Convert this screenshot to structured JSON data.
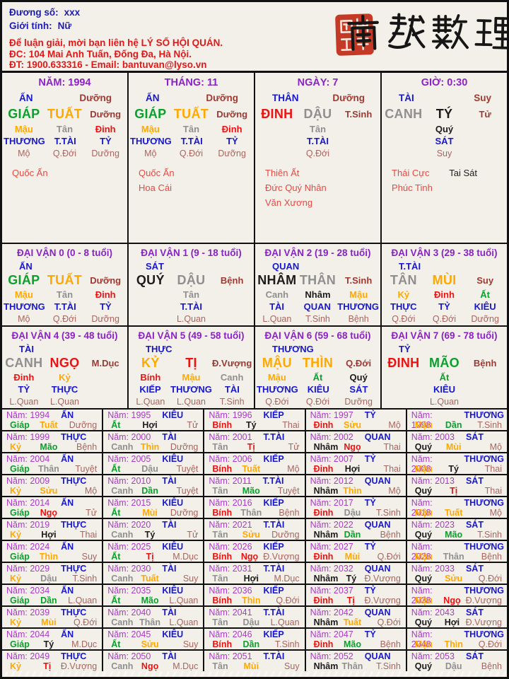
{
  "palette": {
    "bg": "#F3F0EA",
    "navy": "#1C1CB2",
    "blue": "#1717CE",
    "purple": "#8A22C4",
    "magenta": "#A93BC6",
    "green": "#0AA02C",
    "orange": "#FFA800",
    "red": "#EE1111",
    "red2": "#E01818",
    "gray": "#8F8F8F",
    "black": "#1B1B1B",
    "maroon": "#9C3A32",
    "muted": "#A8655F",
    "star": "#E24B44",
    "seal_red": "#C53A26"
  },
  "header": {
    "fields": [
      {
        "label": "Đương số:",
        "value": "xxx"
      },
      {
        "label": "Giới tính:",
        "value": "Nữ"
      }
    ],
    "contact_lines": [
      "Để luận giải, mời bạn liên hệ LÝ SỐ HỘI QUÁN.",
      "ĐC: 104 Mai Anh Tuấn, Đống Đa, Hà Nội.",
      "ĐT: 1900.633316 - Email: bantuvan@lyso.vn"
    ],
    "logo_text": "南越數理"
  },
  "pillars": [
    {
      "name": "pillar-year",
      "title": "NĂM: 1994",
      "god": [
        "ẤN",
        "blue"
      ],
      "state_top": [
        "Dưỡng",
        "maroon"
      ],
      "stem": [
        "GIÁP",
        "green"
      ],
      "branch": [
        "TUẤT",
        "orange"
      ],
      "state": [
        "Dưỡng",
        "maroon"
      ],
      "hidden": [
        {
          "stem": [
            "Mậu",
            "orange"
          ],
          "god": [
            "THƯƠNG",
            "blue"
          ],
          "stage": [
            "Mộ",
            "muted"
          ]
        },
        {
          "stem": [
            "Tân",
            "gray"
          ],
          "god": [
            "T.TÀI",
            "blue"
          ],
          "stage": [
            "Q.Đới",
            "muted"
          ]
        },
        {
          "stem": [
            "Đinh",
            "red"
          ],
          "god": [
            "TỶ",
            "blue"
          ],
          "stage": [
            "Dưỡng",
            "muted"
          ]
        }
      ],
      "stars_red": [
        "Quốc Ấn"
      ],
      "stars_black": []
    },
    {
      "name": "pillar-month",
      "title": "THÁNG: 11",
      "god": [
        "ẤN",
        "blue"
      ],
      "state_top": [
        "Dưỡng",
        "maroon"
      ],
      "stem": [
        "GIÁP",
        "green"
      ],
      "branch": [
        "TUẤT",
        "orange"
      ],
      "state": [
        "Dưỡng",
        "maroon"
      ],
      "hidden": [
        {
          "stem": [
            "Mậu",
            "orange"
          ],
          "god": [
            "THƯƠNG",
            "blue"
          ],
          "stage": [
            "Mộ",
            "muted"
          ]
        },
        {
          "stem": [
            "Tân",
            "gray"
          ],
          "god": [
            "T.TÀI",
            "blue"
          ],
          "stage": [
            "Q.Đới",
            "muted"
          ]
        },
        {
          "stem": [
            "Đinh",
            "red"
          ],
          "god": [
            "TỶ",
            "blue"
          ],
          "stage": [
            "Dưỡng",
            "muted"
          ]
        }
      ],
      "stars_red": [
        "Quốc Ấn",
        "Hoa Cái"
      ],
      "stars_black": []
    },
    {
      "name": "pillar-day",
      "title": "NGÀY: 7",
      "god": [
        "THÂN",
        "blue"
      ],
      "state_top": [
        "Dưỡng",
        "maroon"
      ],
      "stem": [
        "ĐINH",
        "red"
      ],
      "branch": [
        "DẬU",
        "gray"
      ],
      "state": [
        "T.Sinh",
        "maroon"
      ],
      "hidden": [
        null,
        {
          "stem": [
            "Tân",
            "gray"
          ],
          "god": [
            "T.TÀI",
            "blue"
          ],
          "stage": [
            "Q.Đới",
            "muted"
          ]
        },
        null
      ],
      "stars_red": [
        "Thiên Ất",
        "Đức Quý Nhân",
        "Văn Xương"
      ],
      "stars_black": []
    },
    {
      "name": "pillar-hour",
      "title": "GIỜ: 0:30",
      "god": [
        "TÀI",
        "blue"
      ],
      "state_top": [
        "Suy",
        "maroon"
      ],
      "stem": [
        "CANH",
        "gray"
      ],
      "branch": [
        "TÝ",
        "black"
      ],
      "state": [
        "Tử",
        "maroon"
      ],
      "hidden": [
        null,
        {
          "stem": [
            "Quý",
            "black"
          ],
          "god": [
            "SÁT",
            "blue"
          ],
          "stage": [
            "Suy",
            "muted"
          ]
        },
        null
      ],
      "stars_red": [
        "Thái Cực",
        "Phúc Tinh"
      ],
      "stars_black": [
        "Tai Sát"
      ]
    }
  ],
  "daivan": [
    {
      "name": "daivan-0",
      "title": "ĐẠI VẬN 0 (0 - 8 tuổi)",
      "god": [
        "ẤN",
        "blue"
      ],
      "stem": [
        "GIÁP",
        "green"
      ],
      "branch": [
        "TUẤT",
        "orange"
      ],
      "state": [
        "Dưỡng",
        "maroon"
      ],
      "hidden": [
        {
          "stem": [
            "Mậu",
            "orange"
          ],
          "god": [
            "THƯƠNG",
            "blue"
          ],
          "stage": [
            "Mộ",
            "muted"
          ]
        },
        {
          "stem": [
            "Tân",
            "gray"
          ],
          "god": [
            "T.TÀI",
            "blue"
          ],
          "stage": [
            "Q.Đới",
            "muted"
          ]
        },
        {
          "stem": [
            "Đinh",
            "red"
          ],
          "god": [
            "TỶ",
            "blue"
          ],
          "stage": [
            "Dưỡng",
            "muted"
          ]
        }
      ]
    },
    {
      "name": "daivan-1",
      "title": "ĐẠI VẬN 1 (9 - 18 tuổi)",
      "god": [
        "SÁT",
        "blue"
      ],
      "stem": [
        "QUÝ",
        "black"
      ],
      "branch": [
        "DẬU",
        "gray"
      ],
      "state": [
        "Bệnh",
        "maroon"
      ],
      "hidden": [
        null,
        {
          "stem": [
            "Tân",
            "gray"
          ],
          "god": [
            "T.TÀI",
            "blue"
          ],
          "stage": [
            "L.Quan",
            "muted"
          ]
        },
        null
      ]
    },
    {
      "name": "daivan-2",
      "title": "ĐẠI VẬN 2 (19 - 28 tuổi)",
      "god": [
        "QUAN",
        "blue"
      ],
      "stem": [
        "NHÂM",
        "black"
      ],
      "branch": [
        "THÂN",
        "gray"
      ],
      "state": [
        "T.Sinh",
        "maroon"
      ],
      "hidden": [
        {
          "stem": [
            "Canh",
            "gray"
          ],
          "god": [
            "TÀI",
            "blue"
          ],
          "stage": [
            "L.Quan",
            "muted"
          ]
        },
        {
          "stem": [
            "Nhâm",
            "black"
          ],
          "god": [
            "QUAN",
            "blue"
          ],
          "stage": [
            "T.Sinh",
            "muted"
          ]
        },
        {
          "stem": [
            "Mậu",
            "orange"
          ],
          "god": [
            "THƯƠNG",
            "blue"
          ],
          "stage": [
            "Bệnh",
            "muted"
          ]
        }
      ]
    },
    {
      "name": "daivan-3",
      "title": "ĐẠI VẬN 3 (29 - 38 tuổi)",
      "god": [
        "T.TÀI",
        "blue"
      ],
      "stem": [
        "TÂN",
        "gray"
      ],
      "branch": [
        "MÙI",
        "orange"
      ],
      "state": [
        "Suy",
        "maroon"
      ],
      "hidden": [
        {
          "stem": [
            "Kỷ",
            "orange"
          ],
          "god": [
            "THỰC",
            "blue"
          ],
          "stage": [
            "Q.Đới",
            "muted"
          ]
        },
        {
          "stem": [
            "Đinh",
            "red"
          ],
          "god": [
            "TỶ",
            "blue"
          ],
          "stage": [
            "Q.Đới",
            "muted"
          ]
        },
        {
          "stem": [
            "Ất",
            "green"
          ],
          "god": [
            "KIÊU",
            "blue"
          ],
          "stage": [
            "Dưỡng",
            "muted"
          ]
        }
      ]
    },
    {
      "name": "daivan-4",
      "title": "ĐẠI VẬN 4 (39 - 48 tuổi)",
      "god": [
        "TÀI",
        "blue"
      ],
      "stem": [
        "CANH",
        "gray"
      ],
      "branch": [
        "NGỌ",
        "red"
      ],
      "state": [
        "M.Dục",
        "maroon"
      ],
      "hidden": [
        {
          "stem": [
            "Đinh",
            "red"
          ],
          "god": [
            "TỶ",
            "blue"
          ],
          "stage": [
            "L.Quan",
            "muted"
          ]
        },
        {
          "stem": [
            "Kỷ",
            "orange"
          ],
          "god": [
            "THỰC",
            "blue"
          ],
          "stage": [
            "L.Quan",
            "muted"
          ]
        },
        null
      ]
    },
    {
      "name": "daivan-5",
      "title": "ĐẠI VẬN 5 (49 - 58 tuổi)",
      "god": [
        "THỰC",
        "blue"
      ],
      "stem": [
        "KỶ",
        "orange"
      ],
      "branch": [
        "TỊ",
        "red"
      ],
      "state": [
        "Đ.Vượng",
        "maroon"
      ],
      "hidden": [
        {
          "stem": [
            "Bính",
            "red"
          ],
          "god": [
            "KIẾP",
            "blue"
          ],
          "stage": [
            "L.Quan",
            "muted"
          ]
        },
        {
          "stem": [
            "Mậu",
            "orange"
          ],
          "god": [
            "THƯƠNG",
            "blue"
          ],
          "stage": [
            "L.Quan",
            "muted"
          ]
        },
        {
          "stem": [
            "Canh",
            "gray"
          ],
          "god": [
            "TÀI",
            "blue"
          ],
          "stage": [
            "T.Sinh",
            "muted"
          ]
        }
      ]
    },
    {
      "name": "daivan-6",
      "title": "ĐẠI VẬN 6 (59 - 68 tuổi)",
      "god": [
        "THƯƠNG",
        "blue"
      ],
      "stem": [
        "MẬU",
        "orange"
      ],
      "branch": [
        "THÌN",
        "orange"
      ],
      "state": [
        "Q.Đới",
        "maroon"
      ],
      "hidden": [
        {
          "stem": [
            "Mậu",
            "orange"
          ],
          "god": [
            "THƯƠNG",
            "blue"
          ],
          "stage": [
            "Q.Đới",
            "muted"
          ]
        },
        {
          "stem": [
            "Ất",
            "green"
          ],
          "god": [
            "KIÊU",
            "blue"
          ],
          "stage": [
            "Q.Đới",
            "muted"
          ]
        },
        {
          "stem": [
            "Quý",
            "black"
          ],
          "god": [
            "SÁT",
            "blue"
          ],
          "stage": [
            "Dưỡng",
            "muted"
          ]
        }
      ]
    },
    {
      "name": "daivan-7",
      "title": "ĐẠI VẬN 7 (69 - 78 tuổi)",
      "god": [
        "TỶ",
        "blue"
      ],
      "stem": [
        "ĐINH",
        "red"
      ],
      "branch": [
        "MÃO",
        "green"
      ],
      "state": [
        "Bệnh",
        "maroon"
      ],
      "hidden": [
        null,
        {
          "stem": [
            "Ất",
            "green"
          ],
          "god": [
            "KIÊU",
            "blue"
          ],
          "stage": [
            "L.Quan",
            "muted"
          ]
        },
        null
      ]
    }
  ],
  "years_table": {
    "year_label": "Năm:",
    "stem_colors": {
      "Giáp": "green",
      "Ất": "green",
      "Bính": "red",
      "Đinh": "red",
      "Mậu": "orange",
      "Kỷ": "orange",
      "Canh": "gray",
      "Tân": "gray",
      "Nhâm": "black",
      "Quý": "black"
    },
    "branch_colors": {
      "Tý": "black",
      "Hợi": "black",
      "Sửu": "orange",
      "Thìn": "orange",
      "Mùi": "orange",
      "Tuất": "orange",
      "Dần": "green",
      "Mão": "green",
      "Tị": "red",
      "Ngọ": "red",
      "Thân": "gray",
      "Dậu": "gray"
    },
    "cells": [
      [
        "1994",
        "ẤN",
        "Giáp",
        "Tuất",
        "Dưỡng"
      ],
      [
        "1995",
        "KIÊU",
        "Ất",
        "Hợi",
        "Tử"
      ],
      [
        "1996",
        "KIẾP",
        "Bính",
        "Tý",
        "Thai"
      ],
      [
        "1997",
        "TỶ",
        "Đinh",
        "Sửu",
        "Mộ"
      ],
      [
        "1998",
        "THƯƠNG",
        "Mậu",
        "Dần",
        "T.Sinh"
      ],
      [
        "1999",
        "THỰC",
        "Kỷ",
        "Mão",
        "Bệnh"
      ],
      [
        "2000",
        "TÀI",
        "Canh",
        "Thìn",
        "Dưỡng"
      ],
      [
        "2001",
        "T.TÀI",
        "Tân",
        "Tị",
        "Tử"
      ],
      [
        "2002",
        "QUAN",
        "Nhâm",
        "Ngọ",
        "Thai"
      ],
      [
        "2003",
        "SÁT",
        "Quý",
        "Mùi",
        "Mộ"
      ],
      [
        "2004",
        "ẤN",
        "Giáp",
        "Thân",
        "Tuyệt"
      ],
      [
        "2005",
        "KIÊU",
        "Ất",
        "Dậu",
        "Tuyệt"
      ],
      [
        "2006",
        "KIẾP",
        "Bính",
        "Tuất",
        "Mộ"
      ],
      [
        "2007",
        "TỶ",
        "Đinh",
        "Hợi",
        "Thai"
      ],
      [
        "2008",
        "THƯƠNG",
        "Mậu",
        "Tý",
        "Thai"
      ],
      [
        "2009",
        "THỰC",
        "Kỷ",
        "Sửu",
        "Mộ"
      ],
      [
        "2010",
        "TÀI",
        "Canh",
        "Dần",
        "Tuyệt"
      ],
      [
        "2011",
        "T.TÀI",
        "Tân",
        "Mão",
        "Tuyệt"
      ],
      [
        "2012",
        "QUAN",
        "Nhâm",
        "Thìn",
        "Mộ"
      ],
      [
        "2013",
        "SÁT",
        "Quý",
        "Tị",
        "Thai"
      ],
      [
        "2014",
        "ẤN",
        "Giáp",
        "Ngọ",
        "Tử"
      ],
      [
        "2015",
        "KIÊU",
        "Ất",
        "Mùi",
        "Dưỡng"
      ],
      [
        "2016",
        "KIẾP",
        "Bính",
        "Thân",
        "Bệnh"
      ],
      [
        "2017",
        "TỶ",
        "Đinh",
        "Dậu",
        "T.Sinh"
      ],
      [
        "2018",
        "THƯƠNG",
        "Mậu",
        "Tuất",
        "Mộ"
      ],
      [
        "2019",
        "THỰC",
        "Kỷ",
        "Hợi",
        "Thai"
      ],
      [
        "2020",
        "TÀI",
        "Canh",
        "Tý",
        "Tử"
      ],
      [
        "2021",
        "T.TÀI",
        "Tân",
        "Sửu",
        "Dưỡng"
      ],
      [
        "2022",
        "QUAN",
        "Nhâm",
        "Dần",
        "Bệnh"
      ],
      [
        "2023",
        "SÁT",
        "Quý",
        "Mão",
        "T.Sinh"
      ],
      [
        "2024",
        "ẤN",
        "Giáp",
        "Thìn",
        "Suy"
      ],
      [
        "2025",
        "KIÊU",
        "Ất",
        "Tị",
        "M.Dục"
      ],
      [
        "2026",
        "KIẾP",
        "Bính",
        "Ngọ",
        "Đ.Vượng"
      ],
      [
        "2027",
        "TỶ",
        "Đinh",
        "Mùi",
        "Q.Đới"
      ],
      [
        "2028",
        "THƯƠNG",
        "Mậu",
        "Thân",
        "Bệnh"
      ],
      [
        "2029",
        "THỰC",
        "Kỷ",
        "Dậu",
        "T.Sinh"
      ],
      [
        "2030",
        "TÀI",
        "Canh",
        "Tuất",
        "Suy"
      ],
      [
        "2031",
        "T.TÀI",
        "Tân",
        "Hợi",
        "M.Dục"
      ],
      [
        "2032",
        "QUAN",
        "Nhâm",
        "Tý",
        "Đ.Vượng"
      ],
      [
        "2033",
        "SÁT",
        "Quý",
        "Sửu",
        "Q.Đới"
      ],
      [
        "2034",
        "ẤN",
        "Giáp",
        "Dần",
        "L.Quan"
      ],
      [
        "2035",
        "KIÊU",
        "Ất",
        "Mão",
        "L.Quan"
      ],
      [
        "2036",
        "KIẾP",
        "Bính",
        "Thìn",
        "Q.Đới"
      ],
      [
        "2037",
        "TỶ",
        "Đinh",
        "Tị",
        "Đ.Vượng"
      ],
      [
        "2038",
        "THƯƠNG",
        "Mậu",
        "Ngọ",
        "Đ.Vượng"
      ],
      [
        "2039",
        "THỰC",
        "Kỷ",
        "Mùi",
        "Q.Đới"
      ],
      [
        "2040",
        "TÀI",
        "Canh",
        "Thân",
        "L.Quan"
      ],
      [
        "2041",
        "T.TÀI",
        "Tân",
        "Dậu",
        "L.Quan"
      ],
      [
        "2042",
        "QUAN",
        "Nhâm",
        "Tuất",
        "Q.Đới"
      ],
      [
        "2043",
        "SÁT",
        "Quý",
        "Hợi",
        "Đ.Vượng"
      ],
      [
        "2044",
        "ẤN",
        "Giáp",
        "Tý",
        "M.Dục"
      ],
      [
        "2045",
        "KIÊU",
        "Ất",
        "Sửu",
        "Suy"
      ],
      [
        "2046",
        "KIẾP",
        "Bính",
        "Dần",
        "T.Sinh"
      ],
      [
        "2047",
        "TỶ",
        "Đinh",
        "Mão",
        "Bệnh"
      ],
      [
        "2048",
        "THƯƠNG",
        "Mậu",
        "Thìn",
        "Q.Đới"
      ],
      [
        "2049",
        "THỰC",
        "Kỷ",
        "Tị",
        "Đ.Vượng"
      ],
      [
        "2050",
        "TÀI",
        "Canh",
        "Ngọ",
        "M.Dục"
      ],
      [
        "2051",
        "T.TÀI",
        "Tân",
        "Mùi",
        "Suy"
      ],
      [
        "2052",
        "QUAN",
        "Nhâm",
        "Thân",
        "T.Sinh"
      ],
      [
        "2053",
        "SÁT",
        "Quý",
        "Dậu",
        "Bệnh"
      ]
    ]
  }
}
